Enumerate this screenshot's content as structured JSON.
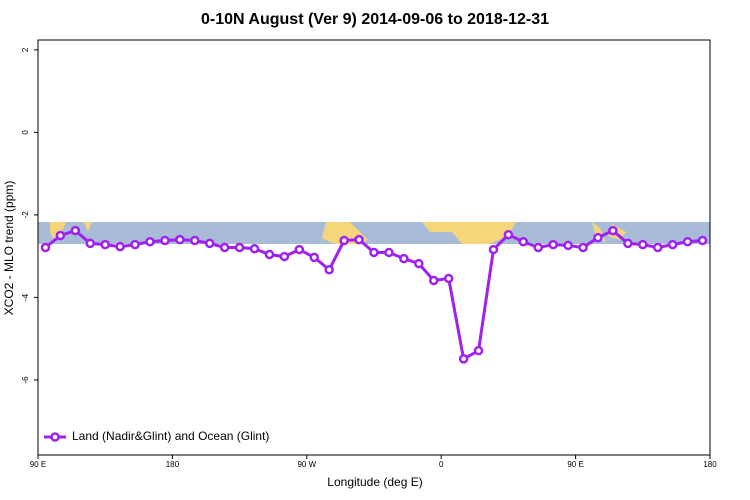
{
  "chart_data": {
    "type": "line",
    "title": "0-10N August (Ver 9)   2014-09-06 to 2018-12-31",
    "x_label": "Longitude (deg E)",
    "y_label": "XCO2 - MLO trend (ppm)",
    "xlim": [
      90,
      540
    ],
    "ylim": [
      -7.82,
      2.24
    ],
    "xticks": [
      {
        "value": 90,
        "label": "90 E"
      },
      180,
      {
        "value": 270,
        "label": "90 W"
      },
      {
        "value": 360,
        "label": "0"
      },
      {
        "value": 450,
        "label": "90 E"
      },
      {
        "value": 540,
        "label": "180"
      }
    ],
    "yticks": [
      2,
      0,
      -2,
      -4,
      -6
    ],
    "x": [
      95,
      105,
      115,
      125,
      135,
      145,
      155,
      165,
      175,
      185,
      195,
      205,
      215,
      225,
      235,
      245,
      255,
      265,
      275,
      285,
      295,
      305,
      315,
      325,
      335,
      345,
      355,
      365,
      375,
      385,
      395,
      405,
      415,
      425,
      435,
      445,
      455,
      465,
      475,
      485,
      495,
      505,
      515,
      525,
      535
    ],
    "series": [
      {
        "name": "Land (Nadir&Glint) and Ocean (Glint)",
        "color": "#a020f0",
        "values": [
          -2.79,
          -2.5,
          -2.38,
          -2.69,
          -2.72,
          -2.77,
          -2.72,
          -2.65,
          -2.62,
          -2.6,
          -2.62,
          -2.69,
          -2.79,
          -2.79,
          -2.82,
          -2.96,
          -3.01,
          -2.84,
          -3.03,
          -3.33,
          -2.62,
          -2.6,
          -2.91,
          -2.91,
          -3.06,
          -3.18,
          -3.59,
          -3.54,
          -5.49,
          -5.29,
          -2.84,
          -2.48,
          -2.65,
          -2.79,
          -2.72,
          -2.74,
          -2.79,
          -2.55,
          -2.38,
          -2.69,
          -2.72,
          -2.79,
          -2.72,
          -2.65,
          -2.62
        ]
      }
    ],
    "legend": "bottom-left"
  }
}
